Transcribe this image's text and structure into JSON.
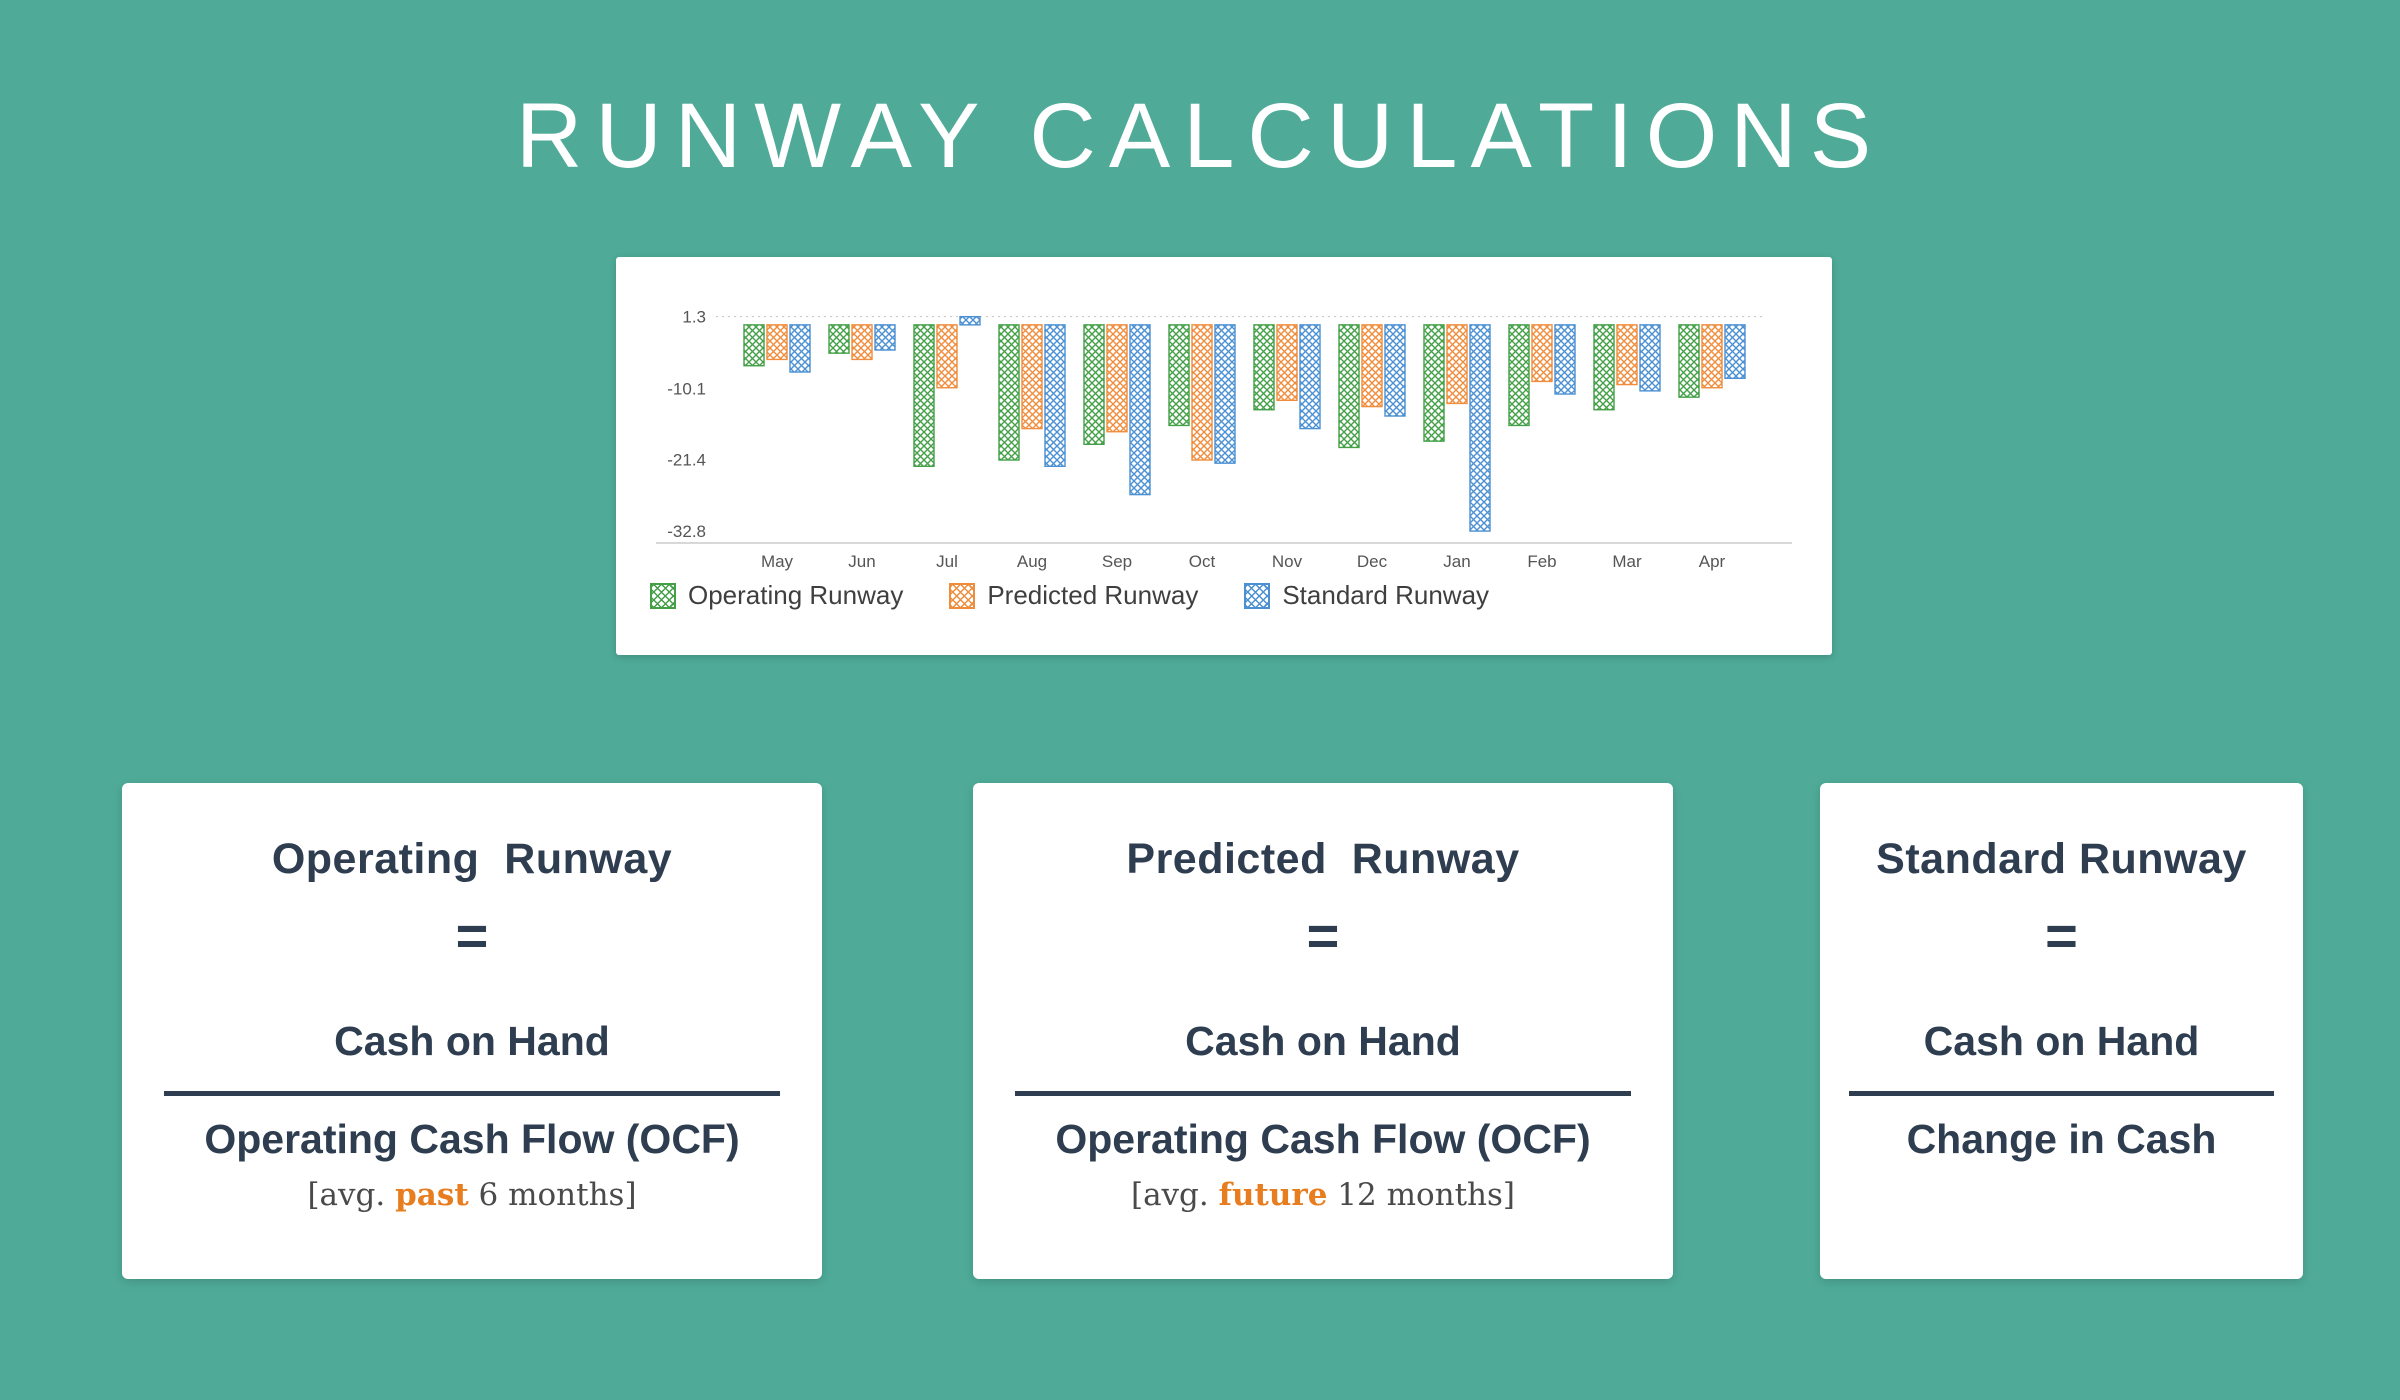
{
  "page": {
    "title": "RUNWAY CALCULATIONS"
  },
  "colors": {
    "background": "#4fab98",
    "card_text": "#2e3d4f",
    "accent_orange": "#e87d1f",
    "axis_text": "#555555",
    "axis_line": "#cccccc"
  },
  "chart_data": {
    "type": "bar",
    "title": "",
    "categories": [
      "May",
      "Jun",
      "Jul",
      "Aug",
      "Sep",
      "Oct",
      "Nov",
      "Dec",
      "Jan",
      "Feb",
      "Mar",
      "Apr"
    ],
    "series": [
      {
        "name": "Operating Runway",
        "color": "#43a047",
        "values": [
          -6.5,
          -4.5,
          -22.5,
          -21.5,
          -19,
          -16,
          -13.5,
          -19.5,
          -18.5,
          -16,
          -13.5,
          -11.5
        ]
      },
      {
        "name": "Predicted Runway",
        "color": "#ef8d3c",
        "values": [
          -5.5,
          -5.5,
          -10,
          -16.5,
          -17,
          -21.5,
          -12,
          -13,
          -12.5,
          -9,
          -9.5,
          -10
        ]
      },
      {
        "name": "Standard Runway",
        "color": "#4a90d2",
        "values": [
          -7.5,
          -4,
          1.3,
          -22.5,
          -27,
          -22,
          -16.5,
          -14.5,
          -32.8,
          -11,
          -10.5,
          -8.5
        ]
      }
    ],
    "yticks": [
      1.3,
      -10.1,
      -21.4,
      -32.8
    ],
    "ylim": [
      3,
      -34.7
    ],
    "xlabel": "",
    "ylabel": "",
    "grid": false,
    "legend_position": "bottom"
  },
  "cards": [
    {
      "title": "Operating  Runway",
      "equals": "=",
      "numerator": "Cash on Hand",
      "denominator": "Operating Cash Flow (OCF)",
      "note": {
        "prefix": "[avg. ",
        "accent": "past",
        "suffix": " 6 months]"
      }
    },
    {
      "title": "Predicted  Runway",
      "equals": "=",
      "numerator": "Cash on Hand",
      "denominator": "Operating Cash Flow (OCF)",
      "note": {
        "prefix": "[avg. ",
        "accent": "future",
        "suffix": " 12 months]"
      }
    },
    {
      "title": "Standard Runway",
      "equals": "=",
      "numerator": "Cash on Hand",
      "denominator": "Change in Cash"
    }
  ]
}
